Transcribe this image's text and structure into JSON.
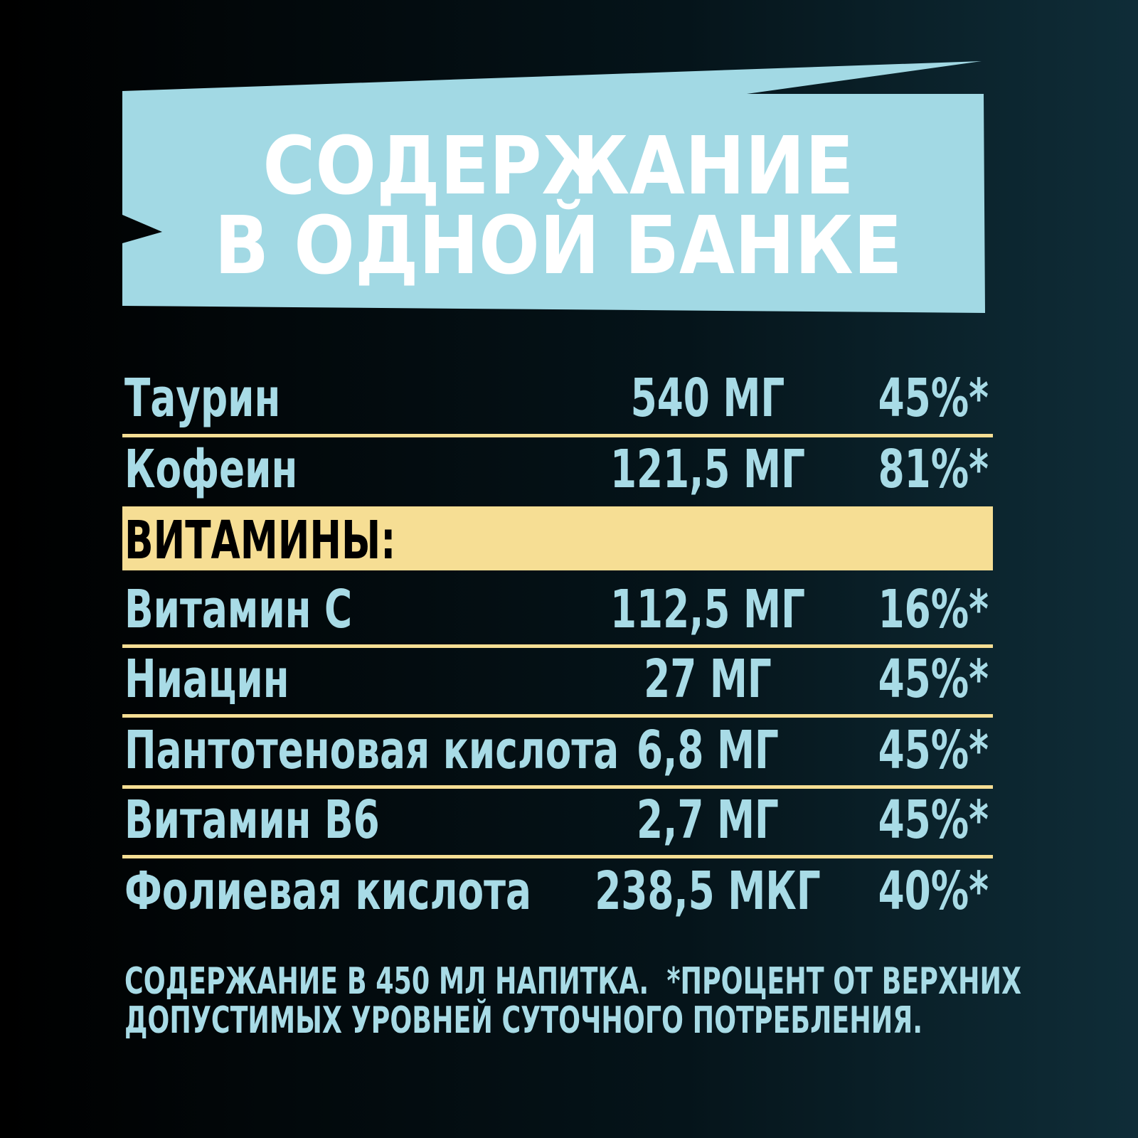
{
  "header": {
    "title_lines": [
      "СОДЕРЖАНИЕ",
      "В ОДНОЙ БАНКЕ"
    ]
  },
  "table": {
    "rows": [
      [
        "Таурин",
        "540 МГ",
        "45%*"
      ],
      [
        "Кофеин",
        "121,5 МГ",
        "81%*"
      ]
    ],
    "section": "ВИТАМИНЫ:",
    "vitamins": [
      [
        "Витамин С",
        "112,5 МГ",
        "16%*"
      ],
      [
        "Ниацин",
        "27 МГ",
        "45%*"
      ],
      [
        "Пантотеновая кислота",
        "6,8 МГ",
        "45%*"
      ],
      [
        "Витамин В6",
        "2,7 МГ",
        "45%*"
      ],
      [
        "Фолиевая кислота",
        "238,5 МКГ",
        "40%*"
      ]
    ]
  },
  "footnote": {
    "lines": [
      "СОДЕРЖАНИЕ В 450 МЛ НАПИТКА.  *ПРОЦЕНТ ОТ ВЕРХНИХ",
      "ДОПУСТИМЫХ УРОВНЕЙ СУТОЧНОГО ПОТРЕБЛЕНИЯ."
    ]
  }
}
